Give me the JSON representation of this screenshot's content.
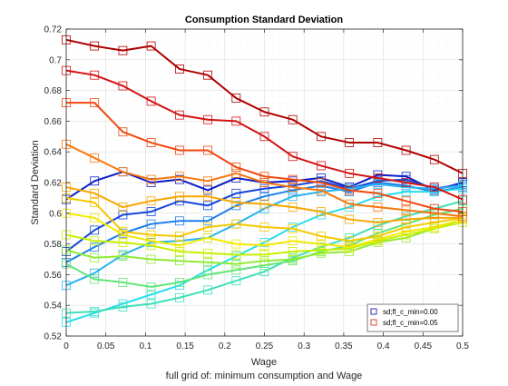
{
  "figure": {
    "background": "#ffffff",
    "footnote": "full grid of: minimum consumption and Wage"
  },
  "chart_data": {
    "type": "line",
    "title": "Consumption Standard Deviation",
    "xlabel": "Wage",
    "ylabel": "Standard Deviation",
    "xlim": [
      0,
      0.5
    ],
    "ylim": [
      0.52,
      0.72
    ],
    "xticks": [
      "0",
      "0.05",
      "0.1",
      "0.15",
      "0.2",
      "0.25",
      "0.3",
      "0.35",
      "0.4",
      "0.45",
      "0.5"
    ],
    "yticks": [
      "0.52",
      "0.54",
      "0.56",
      "0.58",
      "0.6",
      "0.62",
      "0.64",
      "0.66",
      "0.68",
      "0.7",
      "0.72"
    ],
    "x": [
      0,
      0.0357,
      0.0714,
      0.1071,
      0.1429,
      0.1786,
      0.2143,
      0.25,
      0.2857,
      0.3214,
      0.3571,
      0.3929,
      0.4286,
      0.4643,
      0.5
    ],
    "grid": true,
    "legend_position": "bottom-right",
    "legend": [
      {
        "label": "sd;fl_c_min=0.00",
        "color": "#0000b3"
      },
      {
        "label": "sd;fl_c_min=0.05",
        "color": "#cc2200"
      }
    ],
    "series": [
      {
        "color": "#ae0000",
        "values": [
          0.713,
          0.709,
          0.706,
          0.709,
          0.694,
          0.69,
          0.675,
          0.666,
          0.661,
          0.65,
          0.646,
          0.646,
          0.641,
          0.635,
          0.626
        ]
      },
      {
        "color": "#d41212",
        "values": [
          0.693,
          0.69,
          0.683,
          0.673,
          0.664,
          0.661,
          0.66,
          0.65,
          0.637,
          0.631,
          0.626,
          0.623,
          0.62,
          0.617,
          0.609
        ]
      },
      {
        "color": "#f04810",
        "values": [
          0.672,
          0.672,
          0.653,
          0.646,
          0.641,
          0.641,
          0.63,
          0.624,
          0.622,
          0.62,
          0.615,
          0.613,
          0.608,
          0.603,
          0.601
        ]
      },
      {
        "color": "#f7780e",
        "values": [
          0.645,
          0.636,
          0.627,
          0.622,
          0.624,
          0.621,
          0.626,
          0.62,
          0.617,
          0.615,
          0.606,
          0.604,
          0.602,
          0.6,
          0.598
        ]
      },
      {
        "color": "#f7a700",
        "values": [
          0.617,
          0.613,
          0.604,
          0.608,
          0.611,
          0.611,
          0.607,
          0.606,
          0.604,
          0.601,
          0.596,
          0.594,
          0.596,
          0.597,
          0.597
        ]
      },
      {
        "color": "#f3c800",
        "values": [
          0.61,
          0.607,
          0.588,
          0.586,
          0.585,
          0.591,
          0.593,
          0.591,
          0.59,
          0.585,
          0.582,
          0.585,
          0.591,
          0.594,
          0.597
        ]
      },
      {
        "color": "#f2ea00",
        "values": [
          0.6,
          0.597,
          0.586,
          0.582,
          0.579,
          0.584,
          0.58,
          0.579,
          0.582,
          0.58,
          0.578,
          0.583,
          0.588,
          0.591,
          0.596
        ]
      },
      {
        "color": "#c6f000",
        "values": [
          0.586,
          0.582,
          0.581,
          0.579,
          0.575,
          0.574,
          0.573,
          0.573,
          0.575,
          0.576,
          0.577,
          0.582,
          0.586,
          0.59,
          0.594
        ]
      },
      {
        "color": "#90ea36",
        "values": [
          0.576,
          0.571,
          0.572,
          0.57,
          0.569,
          0.568,
          0.567,
          0.569,
          0.57,
          0.574,
          0.575,
          0.581,
          0.584,
          0.59,
          0.596
        ]
      },
      {
        "color": "#62e57a",
        "values": [
          0.567,
          0.557,
          0.555,
          0.552,
          0.555,
          0.56,
          0.563,
          0.566,
          0.569,
          0.575,
          0.579,
          0.587,
          0.593,
          0.599,
          0.603
        ]
      },
      {
        "color": "#3ee0b8",
        "values": [
          0.535,
          0.536,
          0.539,
          0.541,
          0.545,
          0.55,
          0.556,
          0.562,
          0.571,
          0.578,
          0.584,
          0.592,
          0.598,
          0.603,
          0.608
        ]
      },
      {
        "color": "#29ddec",
        "values": [
          0.529,
          0.535,
          0.541,
          0.547,
          0.553,
          0.563,
          0.572,
          0.581,
          0.591,
          0.599,
          0.604,
          0.611,
          0.614,
          0.614,
          0.616
        ]
      },
      {
        "color": "#28b3ee",
        "values": [
          0.553,
          0.561,
          0.573,
          0.581,
          0.582,
          0.584,
          0.593,
          0.603,
          0.611,
          0.614,
          0.616,
          0.619,
          0.617,
          0.616,
          0.618
        ]
      },
      {
        "color": "#1f7fe8",
        "values": [
          0.568,
          0.578,
          0.587,
          0.593,
          0.595,
          0.595,
          0.605,
          0.611,
          0.615,
          0.618,
          0.614,
          0.62,
          0.618,
          0.614,
          0.617
        ]
      },
      {
        "color": "#1446d8",
        "values": [
          0.575,
          0.589,
          0.599,
          0.601,
          0.608,
          0.605,
          0.613,
          0.616,
          0.618,
          0.621,
          0.616,
          0.621,
          0.622,
          0.616,
          0.619
        ]
      },
      {
        "color": "#0a1cc6",
        "values": [
          0.609,
          0.621,
          0.627,
          0.62,
          0.622,
          0.615,
          0.623,
          0.62,
          0.621,
          0.623,
          0.617,
          0.625,
          0.624,
          0.615,
          0.62
        ]
      }
    ]
  }
}
